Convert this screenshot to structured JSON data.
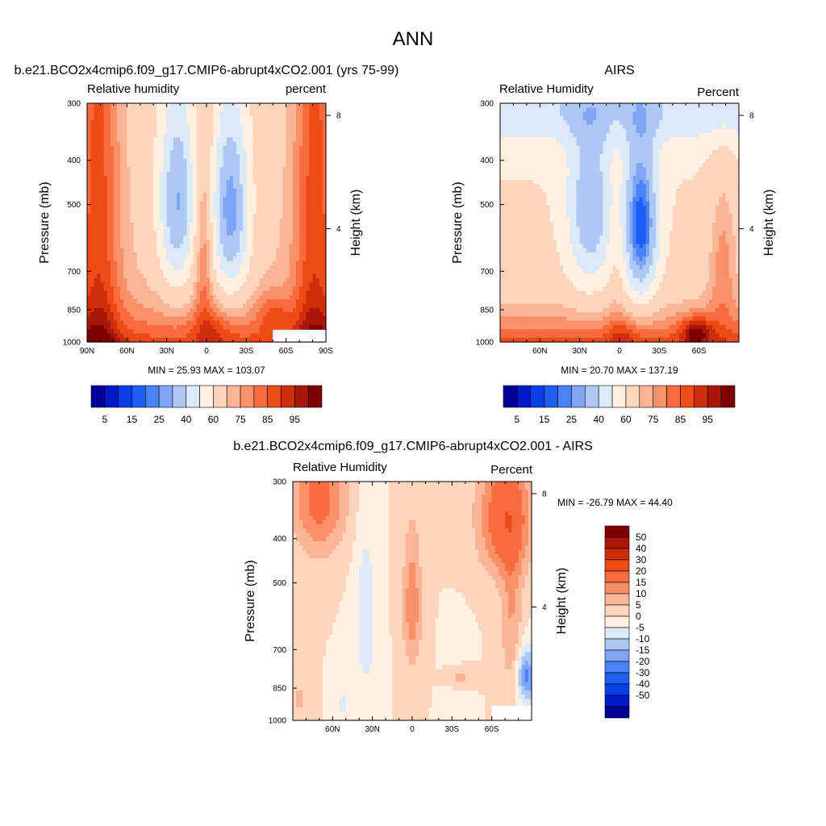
{
  "page_title": "ANN",
  "colormaps": {
    "absolute": [
      "#000096",
      "#0019c8",
      "#0a3ee6",
      "#1f5ef5",
      "#4a82f5",
      "#7ea6f5",
      "#aec8f5",
      "#dce9f8",
      "#fff0e1",
      "#fdd5bd",
      "#fab596",
      "#f99068",
      "#f76b3e",
      "#ee4a18",
      "#cf2e0c",
      "#a8170a",
      "#7d0000"
    ],
    "difference": [
      "#000096",
      "#0019c8",
      "#0a3ee6",
      "#1f5ef5",
      "#4a82f5",
      "#7ea6f5",
      "#aec8f5",
      "#dce9f8",
      "#fff0e1",
      "#fdd5bd",
      "#fab596",
      "#f99068",
      "#f76b3e",
      "#ee4a18",
      "#cf2e0c",
      "#a8170a",
      "#7d0000"
    ]
  },
  "chart_data": [
    {
      "type": "heatmap",
      "title": "b.e21.BCO2x4cmip6.f09_g17.CMIP6-abrupt4xCO2.001 (yrs 75-99)",
      "left_label": "Relative humidity",
      "right_label": "percent",
      "ylabel": "Pressure (mb)",
      "ylabel_right": "Height (km)",
      "x_ticks": [
        "90N",
        "60N",
        "30N",
        "0",
        "30S",
        "60S",
        "90S"
      ],
      "y_ticks": [
        "300",
        "400",
        "500",
        "700",
        "850",
        "1000"
      ],
      "right_ticks": [
        "8",
        "4"
      ],
      "xlim": [
        90,
        -90
      ],
      "ylim": [
        1000,
        300
      ],
      "minmax": "MIN =  25.93  MAX = 103.07",
      "colorbar_labels": [
        "5",
        "15",
        "25",
        "40",
        "60",
        "75",
        "85",
        "95"
      ],
      "model": "model",
      "missing_box": {
        "lat_from": -50,
        "lat_to": -90,
        "p_from": 940,
        "p_to": 1000
      }
    },
    {
      "type": "heatmap",
      "title": "AIRS",
      "left_label": "Relative Humidity",
      "right_label": "Percent",
      "ylabel": "Pressure (mb)",
      "ylabel_right": "Height (km)",
      "x_ticks": [
        "60N",
        "30N",
        "0",
        "30S",
        "60S"
      ],
      "y_ticks": [
        "300",
        "400",
        "500",
        "700",
        "850",
        "1000"
      ],
      "right_ticks": [
        "8",
        "4"
      ],
      "xlim": [
        90,
        -90
      ],
      "ylim": [
        1000,
        300
      ],
      "minmax": "MIN =  20.70  MAX = 137.19",
      "colorbar_labels": [
        "5",
        "15",
        "25",
        "40",
        "60",
        "75",
        "85",
        "95"
      ],
      "model": "airs"
    },
    {
      "type": "heatmap",
      "title": "b.e21.BCO2x4cmip6.f09_g17.CMIP6-abrupt4xCO2.001 - AIRS",
      "left_label": "Relative Humidity",
      "right_label": "Percent",
      "ylabel": "Pressure (mb)",
      "ylabel_right": "Height (km)",
      "x_ticks": [
        "60N",
        "30N",
        "0",
        "30S",
        "60S"
      ],
      "y_ticks": [
        "300",
        "400",
        "500",
        "700",
        "850",
        "1000"
      ],
      "right_ticks": [
        "8",
        "4"
      ],
      "xlim": [
        90,
        -90
      ],
      "ylim": [
        1000,
        300
      ],
      "minmax": "MIN = -26.79  MAX =  44.40",
      "colorbar_labels": [
        "50",
        "40",
        "30",
        "20",
        "15",
        "10",
        "5",
        "0",
        "-5",
        "-10",
        "-15",
        "-20",
        "-30",
        "-40",
        "-50"
      ],
      "model": "diff",
      "missing_box": {
        "lat_from": -60,
        "lat_to": -90,
        "p_from": 930,
        "p_to": 1000
      }
    }
  ]
}
